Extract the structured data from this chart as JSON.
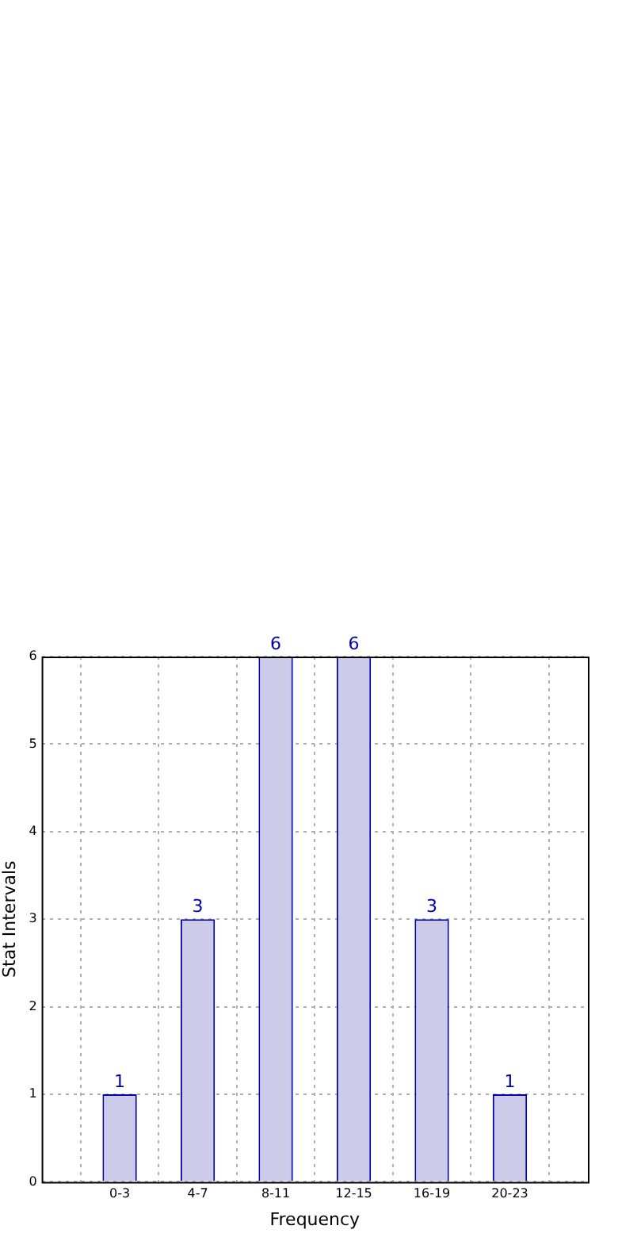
{
  "chart_data": {
    "type": "bar",
    "xlabel": "Frequency",
    "ylabel": "Stat Intervals",
    "categories": [
      "0-3",
      "4-7",
      "8-11",
      "12-15",
      "16-19",
      "20-23"
    ],
    "values": [
      1,
      3,
      6,
      6,
      3,
      1
    ],
    "color": "#ccccea",
    "ylim": [
      0,
      6
    ],
    "yticks": [
      0,
      1,
      2,
      3,
      4,
      5,
      6
    ],
    "grid": true,
    "data_labels": true
  }
}
